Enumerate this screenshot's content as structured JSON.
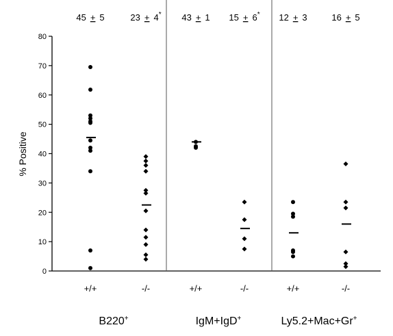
{
  "chart_data": {
    "type": "scatter",
    "title": "",
    "xlabel": "",
    "ylabel": "% Positive",
    "ylim": [
      0,
      80
    ],
    "yticks": [
      "0",
      "10",
      "20",
      "30",
      "40",
      "50",
      "60",
      "70",
      "80"
    ],
    "grid": false,
    "legend": "none",
    "groups": [
      {
        "label": "B220",
        "label_sup": "+",
        "columns": [
          {
            "category": "+/+",
            "summary": {
              "mean": "45",
              "pm": "+",
              "sem": "5",
              "significance": ""
            },
            "marker": "circle",
            "mean_line": 45.5,
            "values": [
              69.5,
              61.8,
              53.0,
              52.0,
              51.0,
              50.5,
              44.5,
              42.0,
              41.0,
              34.0,
              7.0,
              1.0
            ]
          },
          {
            "category": "-/-",
            "summary": {
              "mean": "23",
              "pm": "+",
              "sem": "4",
              "significance": "*"
            },
            "marker": "diamond",
            "mean_line": 22.5,
            "values": [
              39.0,
              37.5,
              36.0,
              34.0,
              27.5,
              26.5,
              20.5,
              14.0,
              11.5,
              9.0,
              5.5,
              4.0
            ]
          }
        ]
      },
      {
        "label": "IgM+IgD",
        "label_sup": "+",
        "columns": [
          {
            "category": "+/+",
            "summary": {
              "mean": "43",
              "pm": "+",
              "sem": "1",
              "significance": ""
            },
            "marker": "circle",
            "mean_line": 44.0,
            "values": [
              44.0,
              42.5,
              42.0
            ]
          },
          {
            "category": "-/-",
            "summary": {
              "mean": "15",
              "pm": "+",
              "sem": "6",
              "significance": "*"
            },
            "marker": "diamond",
            "mean_line": 14.5,
            "values": [
              23.5,
              17.5,
              11.0,
              7.5
            ]
          }
        ]
      },
      {
        "label": "Ly5.2+Mac+Gr",
        "label_sup": "+",
        "columns": [
          {
            "category": "+/+",
            "summary": {
              "mean": "12",
              "pm": "+",
              "sem": "3",
              "significance": ""
            },
            "marker": "circle",
            "mean_line": 13.0,
            "values": [
              23.5,
              19.5,
              18.5,
              7.0,
              6.5,
              5.0
            ]
          },
          {
            "category": "-/-",
            "summary": {
              "mean": "16",
              "pm": "+",
              "sem": "5",
              "significance": ""
            },
            "marker": "diamond",
            "mean_line": 16.0,
            "values": [
              36.5,
              23.5,
              21.5,
              6.5,
              2.5,
              1.5
            ]
          }
        ]
      }
    ],
    "colors": {
      "ink": "#000000",
      "divider": "#555555"
    }
  }
}
